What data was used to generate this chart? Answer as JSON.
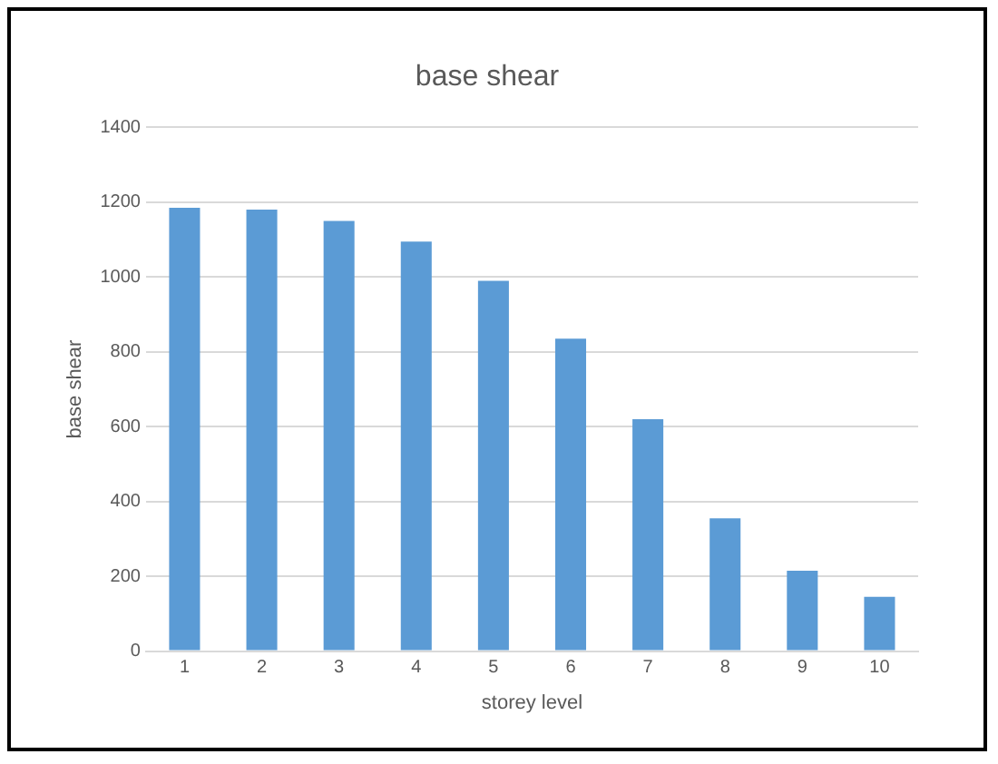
{
  "chart_data": {
    "type": "bar",
    "title": "base shear",
    "xlabel": "storey level",
    "ylabel": "base shear",
    "categories": [
      "1",
      "2",
      "3",
      "4",
      "5",
      "6",
      "7",
      "8",
      "9",
      "10"
    ],
    "values": [
      1185,
      1180,
      1150,
      1095,
      990,
      835,
      620,
      355,
      215,
      145
    ],
    "color": "#5b9bd5",
    "ylim": [
      0,
      1400
    ],
    "yticks": [
      0,
      200,
      400,
      600,
      800,
      1000,
      1200,
      1400
    ],
    "grid": "y",
    "legend": false
  }
}
